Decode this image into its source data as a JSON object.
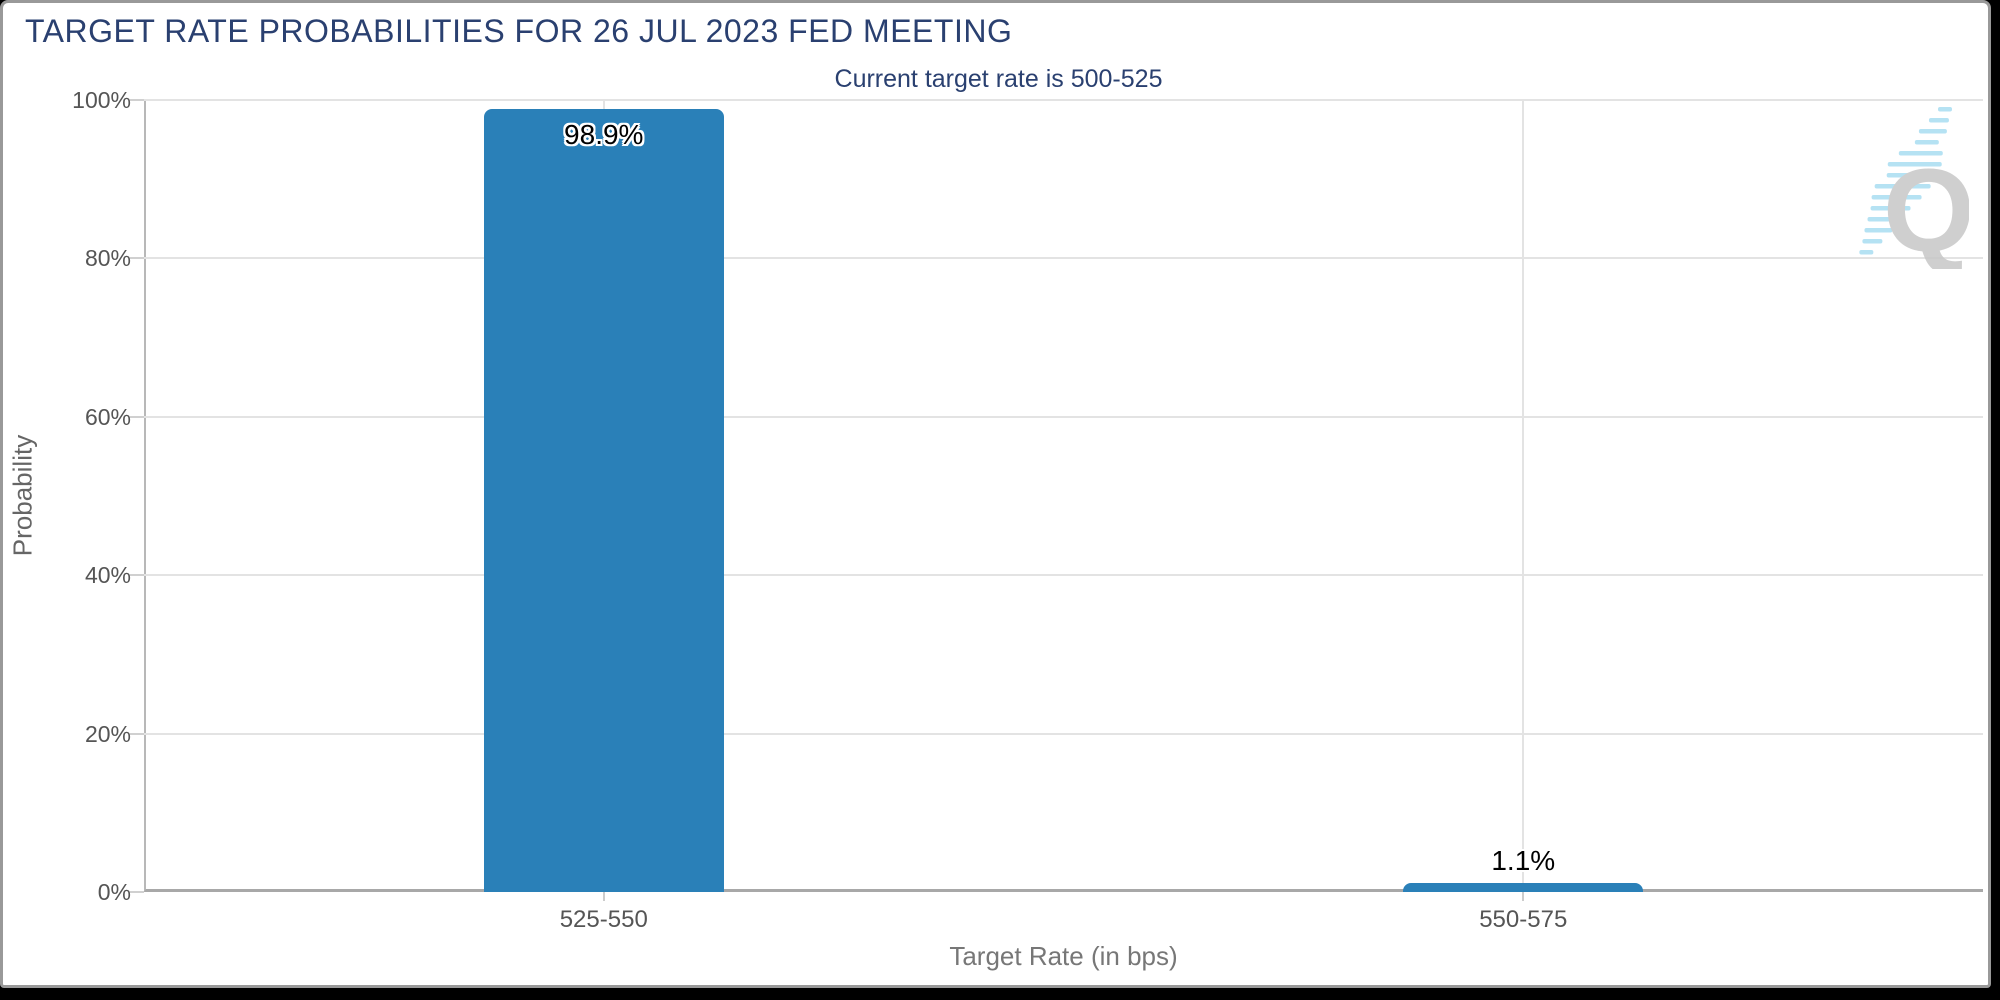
{
  "header": {
    "title": "TARGET RATE PROBABILITIES FOR 26 JUL 2023 FED MEETING",
    "subtitle": "Current target rate is 500-525"
  },
  "watermark": {
    "letter": "Q"
  },
  "colors": {
    "title_navy": "#2A4070",
    "bar_blue": "#2A80B8",
    "gridline": "#e3e3e3",
    "axis_line": "#a8a8a8",
    "tick_label": "#555555",
    "axis_title": "#6e6e6e",
    "card_border": "#999999",
    "watermark_q": "#c7c7c7",
    "watermark_dash": "#a9ddf2",
    "background": "#000000"
  },
  "chart_data": {
    "type": "bar",
    "title": "TARGET RATE PROBABILITIES FOR 26 JUL 2023 FED MEETING",
    "subtitle": "Current target rate is 500-525",
    "categories": [
      "525-550",
      "550-575"
    ],
    "values": [
      98.9,
      1.1
    ],
    "value_labels": [
      "98.9%",
      "1.1%"
    ],
    "xlabel": "Target Rate (in bps)",
    "ylabel": "Probability",
    "ylim": [
      0,
      100
    ],
    "yticks": [
      "0%",
      "20%",
      "40%",
      "60%",
      "80%",
      "100%"
    ],
    "ytick_values": [
      0,
      20,
      40,
      60,
      80,
      100
    ],
    "grid": true,
    "legend": "none",
    "bar_color": "#2A80B8"
  }
}
